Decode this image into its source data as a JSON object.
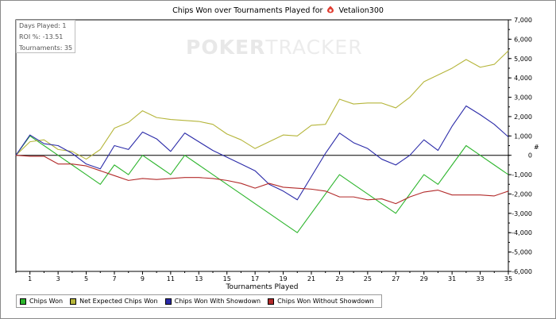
{
  "title": {
    "prefix": "Chips Won over Tournaments Played for",
    "player": "Vetalion300"
  },
  "info_box": {
    "days_played": "Days Played: 1",
    "roi": "ROI %: -13.51",
    "tournaments": "Tournaments: 35"
  },
  "watermark": {
    "part1": "POKER",
    "part2": "TRACKER"
  },
  "colors": {
    "chips_won": "#2db52d",
    "net_expected": "#b5b53a",
    "with_showdown": "#2a2aa8",
    "without_showdown": "#b22a2a",
    "zero_line": "#000000",
    "grid": "#d8d8d8",
    "logo": "#e03a2e"
  },
  "legend": [
    {
      "label": "Chips Won",
      "color": "#2db52d"
    },
    {
      "label": "Net Expected Chips Won",
      "color": "#b5b53a"
    },
    {
      "label": "Chips Won With Showdown",
      "color": "#2a2aa8"
    },
    {
      "label": "Chips Won Without Showdown",
      "color": "#b22a2a"
    }
  ],
  "chart_data": {
    "type": "line",
    "title": "Chips Won over Tournaments Played for Vetalion300",
    "xlabel": "Tournaments Played",
    "ylabel": "",
    "y_unit": "#",
    "xlim": [
      0,
      35
    ],
    "ylim": [
      -6000,
      7000
    ],
    "x_ticks": [
      1,
      3,
      5,
      7,
      9,
      11,
      13,
      15,
      17,
      19,
      21,
      23,
      25,
      27,
      29,
      31,
      33,
      35
    ],
    "y_ticks": [
      7000,
      6000,
      5000,
      4000,
      3000,
      2000,
      1000,
      0,
      -1000,
      -2000,
      -3000,
      -4000,
      -5000,
      -6000
    ],
    "y_tick_labels": [
      "7,000",
      "6,000",
      "5,000",
      "4,000",
      "3,000",
      "2,000",
      "1,000",
      "0",
      "-1,000",
      "-2,000",
      "-3,000",
      "-4,000",
      "-5,000",
      "-6,000"
    ],
    "grid": false,
    "legend_position": "bottom",
    "x": [
      0,
      1,
      2,
      3,
      4,
      5,
      6,
      7,
      8,
      9,
      10,
      11,
      12,
      13,
      14,
      15,
      16,
      17,
      18,
      19,
      20,
      21,
      22,
      23,
      24,
      25,
      26,
      27,
      28,
      29,
      30,
      31,
      32,
      33,
      34,
      35
    ],
    "series": [
      {
        "name": "Chips Won",
        "values": [
          0,
          1000,
          500,
          0,
          -500,
          -1000,
          -1500,
          -500,
          -1000,
          0,
          -500,
          -1000,
          0,
          -500,
          -1000,
          -1500,
          -2000,
          -2500,
          -3000,
          -3500,
          -4000,
          -3000,
          -2000,
          -1000,
          -1500,
          -2000,
          -2500,
          -3000,
          -2000,
          -1000,
          -1500,
          -500,
          500,
          0,
          -500,
          -1000
        ]
      },
      {
        "name": "Net Expected Chips Won",
        "values": [
          0,
          700,
          800,
          300,
          200,
          -200,
          300,
          1400,
          1700,
          2300,
          1950,
          1850,
          1800,
          1750,
          1600,
          1100,
          800,
          350,
          700,
          1050,
          1000,
          1550,
          1600,
          2900,
          2650,
          2700,
          2700,
          2450,
          3000,
          3800,
          4150,
          4500,
          4950,
          4550,
          4700,
          5400
        ]
      },
      {
        "name": "Chips Won With Showdown",
        "values": [
          0,
          1050,
          600,
          500,
          100,
          -450,
          -700,
          500,
          300,
          1200,
          850,
          200,
          1150,
          700,
          250,
          -100,
          -450,
          -800,
          -1500,
          -1850,
          -2300,
          -1100,
          100,
          1150,
          650,
          350,
          -200,
          -500,
          0,
          800,
          250,
          1500,
          2550,
          2100,
          1600,
          950
        ]
      },
      {
        "name": "Chips Won Without Showdown",
        "values": [
          0,
          -50,
          -50,
          -450,
          -450,
          -550,
          -800,
          -1050,
          -1300,
          -1200,
          -1250,
          -1200,
          -1150,
          -1150,
          -1200,
          -1300,
          -1450,
          -1700,
          -1450,
          -1650,
          -1700,
          -1750,
          -1850,
          -2150,
          -2150,
          -2300,
          -2250,
          -2500,
          -2150,
          -1900,
          -1800,
          -2050,
          -2050,
          -2050,
          -2100,
          -1850
        ]
      }
    ]
  }
}
